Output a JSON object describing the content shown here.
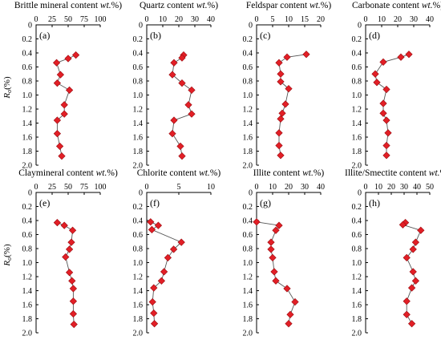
{
  "figure": {
    "y_axis_label": "Ro(%)",
    "y_ticks": [
      "0",
      "0.2",
      "0.4",
      "0.6",
      "0.8",
      "1.0",
      "1.2",
      "1.4",
      "1.6",
      "1.8",
      "2.0"
    ]
  },
  "colors": {
    "marker": "#e21f26",
    "marker_edge": "#9a0d12",
    "line": "#555555"
  },
  "chart_data": [
    {
      "type": "line",
      "panel_label": "(a)",
      "title": "Brittle mineral content (wt.%)",
      "xlim": [
        0,
        100
      ],
      "x_ticks": [
        "0",
        "25",
        "50",
        "75",
        "100"
      ],
      "ylim": [
        2.0,
        0
      ],
      "x_axis_position": "top",
      "points": [
        [
          62,
          0.43
        ],
        [
          50,
          0.48
        ],
        [
          32,
          0.54
        ],
        [
          38,
          0.71
        ],
        [
          33,
          0.83
        ],
        [
          52,
          0.93
        ],
        [
          44,
          1.14
        ],
        [
          44,
          1.27
        ],
        [
          33,
          1.36
        ],
        [
          33,
          1.55
        ],
        [
          37,
          1.73
        ],
        [
          40,
          1.87
        ]
      ]
    },
    {
      "type": "line",
      "panel_label": "(b)",
      "title": "Quartz content (wt.%)",
      "xlim": [
        0,
        40
      ],
      "x_ticks": [
        "0",
        "10",
        "20",
        "30",
        "40"
      ],
      "ylim": [
        2.0,
        0
      ],
      "x_axis_position": "top",
      "points": [
        [
          23,
          0.43
        ],
        [
          22,
          0.47
        ],
        [
          17,
          0.54
        ],
        [
          16,
          0.71
        ],
        [
          22,
          0.83
        ],
        [
          28,
          0.93
        ],
        [
          26,
          1.14
        ],
        [
          28,
          1.27
        ],
        [
          17,
          1.36
        ],
        [
          16,
          1.55
        ],
        [
          21,
          1.73
        ],
        [
          22,
          1.87
        ]
      ]
    },
    {
      "type": "line",
      "panel_label": "(c)",
      "title": "Feldspar content (wt.%)",
      "xlim": [
        0,
        20
      ],
      "x_ticks": [
        "0",
        "5",
        "10",
        "15",
        "20"
      ],
      "ylim": [
        2.0,
        0
      ],
      "x_axis_position": "top",
      "points": [
        [
          15.5,
          0.42
        ],
        [
          9.5,
          0.46
        ],
        [
          7,
          0.54
        ],
        [
          7.5,
          0.7
        ],
        [
          7.5,
          0.81
        ],
        [
          10,
          0.91
        ],
        [
          9,
          1.13
        ],
        [
          8,
          1.26
        ],
        [
          7.5,
          1.34
        ],
        [
          7,
          1.54
        ],
        [
          7,
          1.72
        ],
        [
          7.5,
          1.86
        ]
      ]
    },
    {
      "type": "line",
      "panel_label": "(d)",
      "title": "Carbonate content (wt.%)",
      "xlim": [
        0,
        40
      ],
      "x_ticks": [
        "0",
        "10",
        "20",
        "30",
        "40"
      ],
      "ylim": [
        2.0,
        0
      ],
      "x_axis_position": "top",
      "points": [
        [
          27,
          0.42
        ],
        [
          22,
          0.46
        ],
        [
          11,
          0.53
        ],
        [
          6,
          0.7
        ],
        [
          7,
          0.82
        ],
        [
          13,
          0.92
        ],
        [
          11,
          1.12
        ],
        [
          11,
          1.26
        ],
        [
          13,
          1.36
        ],
        [
          14,
          1.54
        ],
        [
          13,
          1.72
        ],
        [
          13,
          1.86
        ]
      ]
    },
    {
      "type": "line",
      "panel_label": "(e)",
      "title": "Claymineral content (wt.%)",
      "xlim": [
        0,
        100
      ],
      "x_ticks": [
        "0",
        "25",
        "50",
        "75",
        "100"
      ],
      "ylim": [
        2.0,
        0
      ],
      "x_axis_position": "top",
      "points": [
        [
          33,
          0.43
        ],
        [
          44,
          0.47
        ],
        [
          57,
          0.54
        ],
        [
          55,
          0.71
        ],
        [
          52,
          0.81
        ],
        [
          46,
          0.92
        ],
        [
          52,
          1.14
        ],
        [
          56,
          1.26
        ],
        [
          58,
          1.37
        ],
        [
          58,
          1.55
        ],
        [
          58,
          1.73
        ],
        [
          59,
          1.88
        ]
      ]
    },
    {
      "type": "line",
      "panel_label": "(f)",
      "title": "Chlorite content (wt.%)",
      "xlim": [
        0,
        10
      ],
      "x_ticks": [
        "0",
        "5",
        "10"
      ],
      "ylim": [
        2.0,
        0
      ],
      "x_axis_position": "top",
      "points": [
        [
          0.6,
          0.42
        ],
        [
          1.8,
          0.47
        ],
        [
          0.8,
          0.53
        ],
        [
          5.4,
          0.71
        ],
        [
          4.2,
          0.81
        ],
        [
          3.3,
          0.93
        ],
        [
          2.7,
          1.13
        ],
        [
          2.3,
          1.26
        ],
        [
          1.1,
          1.36
        ],
        [
          0.9,
          1.56
        ],
        [
          1.1,
          1.72
        ],
        [
          1.2,
          1.87
        ]
      ]
    },
    {
      "type": "line",
      "panel_label": "(g)",
      "title": "Illite content (wt.%)",
      "xlim": [
        0,
        40
      ],
      "x_ticks": [
        "0",
        "10",
        "20",
        "30",
        "40"
      ],
      "ylim": [
        2.0,
        0
      ],
      "x_axis_position": "top",
      "points": [
        [
          0,
          0.42
        ],
        [
          14,
          0.47
        ],
        [
          12,
          0.54
        ],
        [
          9,
          0.71
        ],
        [
          9,
          0.81
        ],
        [
          10,
          0.93
        ],
        [
          11,
          1.13
        ],
        [
          12,
          1.26
        ],
        [
          19,
          1.37
        ],
        [
          24,
          1.56
        ],
        [
          21,
          1.74
        ],
        [
          20,
          1.87
        ]
      ]
    },
    {
      "type": "line",
      "panel_label": "(h)",
      "title": "Illite/Smectite content (wt.%)",
      "xlim": [
        0,
        50
      ],
      "x_ticks": [
        "0",
        "10",
        "20",
        "30",
        "40",
        "50"
      ],
      "ylim": [
        2.0,
        0
      ],
      "x_axis_position": "top",
      "points": [
        [
          31,
          0.43
        ],
        [
          29,
          0.46
        ],
        [
          43,
          0.54
        ],
        [
          39,
          0.71
        ],
        [
          37,
          0.81
        ],
        [
          32,
          0.93
        ],
        [
          37,
          1.13
        ],
        [
          39,
          1.26
        ],
        [
          36,
          1.36
        ],
        [
          32,
          1.55
        ],
        [
          32,
          1.74
        ],
        [
          36,
          1.87
        ]
      ]
    }
  ]
}
